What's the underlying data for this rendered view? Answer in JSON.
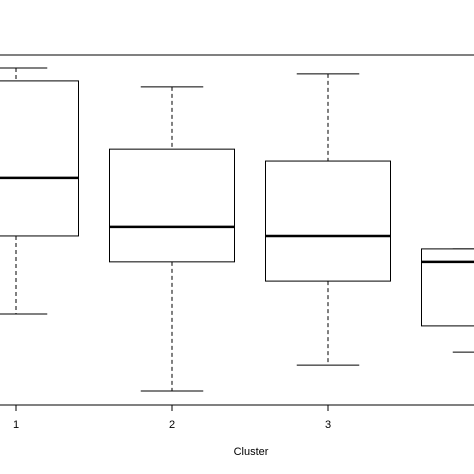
{
  "chart_data": {
    "type": "box",
    "x_label": "Cluster",
    "categories": [
      "1",
      "2",
      "3",
      null
    ],
    "min": [
      26,
      4,
      11.4,
      15.1
    ],
    "q1": [
      48.3,
      40.9,
      35.4,
      22.6
    ],
    "median": [
      64.9,
      50.9,
      48.3,
      40.9
    ],
    "q3": [
      92.6,
      73.1,
      69.7,
      44.6
    ],
    "max": [
      96.3,
      90.9,
      94.6,
      44.6
    ],
    "ylim": [
      0,
      100
    ],
    "color": "#000000"
  }
}
